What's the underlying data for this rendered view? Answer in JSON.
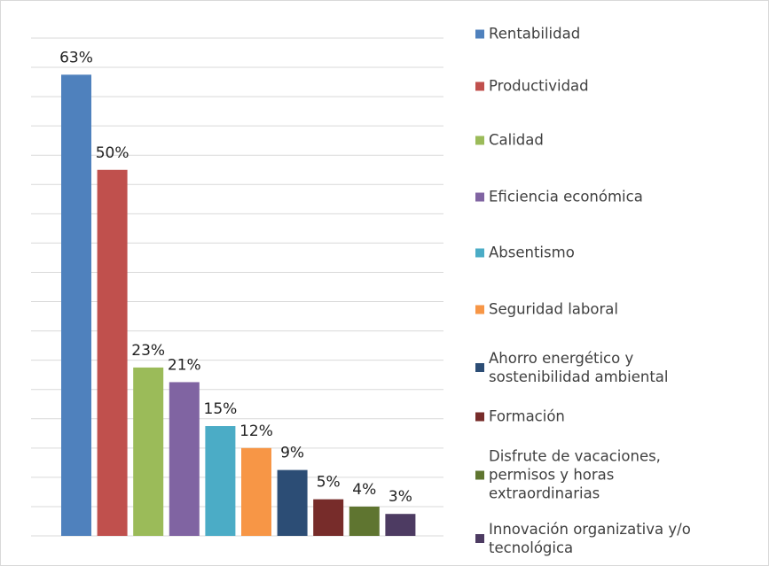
{
  "chart_data": {
    "type": "bar",
    "categories": [
      null
    ],
    "series": [
      {
        "name": "Rentabilidad",
        "color": "#4f81bd",
        "values": [
          63
        ],
        "value_labels": [
          "63%"
        ]
      },
      {
        "name": "Productividad",
        "color": "#c0504d",
        "values": [
          50
        ],
        "value_labels": [
          "50%"
        ]
      },
      {
        "name": "Calidad",
        "color": "#9bbb59",
        "values": [
          23
        ],
        "value_labels": [
          "23%"
        ]
      },
      {
        "name": "Eficiencia económica",
        "color": "#8064a2",
        "values": [
          21
        ],
        "value_labels": [
          "21%"
        ]
      },
      {
        "name": "Absentismo",
        "color": "#4bacc6",
        "values": [
          15
        ],
        "value_labels": [
          "15%"
        ]
      },
      {
        "name": "Seguridad laboral",
        "color": "#f79646",
        "values": [
          12
        ],
        "value_labels": [
          "12%"
        ]
      },
      {
        "name": "Ahorro energético y sostenibilidad ambiental",
        "color": "#2c4d75",
        "values": [
          9
        ],
        "value_labels": [
          "9%"
        ]
      },
      {
        "name": "Formación",
        "color": "#772c2a",
        "values": [
          5
        ],
        "value_labels": [
          "5%"
        ]
      },
      {
        "name": "Disfrute de vacaciones, permisos y horas extraordinarias",
        "color": "#5f7530",
        "values": [
          4
        ],
        "value_labels": [
          "4%"
        ]
      },
      {
        "name": "Innovación organizativa y/o tecnológica",
        "color": "#4d3b62",
        "values": [
          3
        ],
        "value_labels": [
          "3%"
        ]
      }
    ],
    "ylim": [
      0,
      68
    ],
    "yticks": [
      0,
      4,
      8,
      12,
      16,
      20,
      24,
      28,
      32,
      36,
      40,
      44,
      48,
      52,
      56,
      60,
      64,
      68
    ],
    "grid": true,
    "legend": "right"
  }
}
